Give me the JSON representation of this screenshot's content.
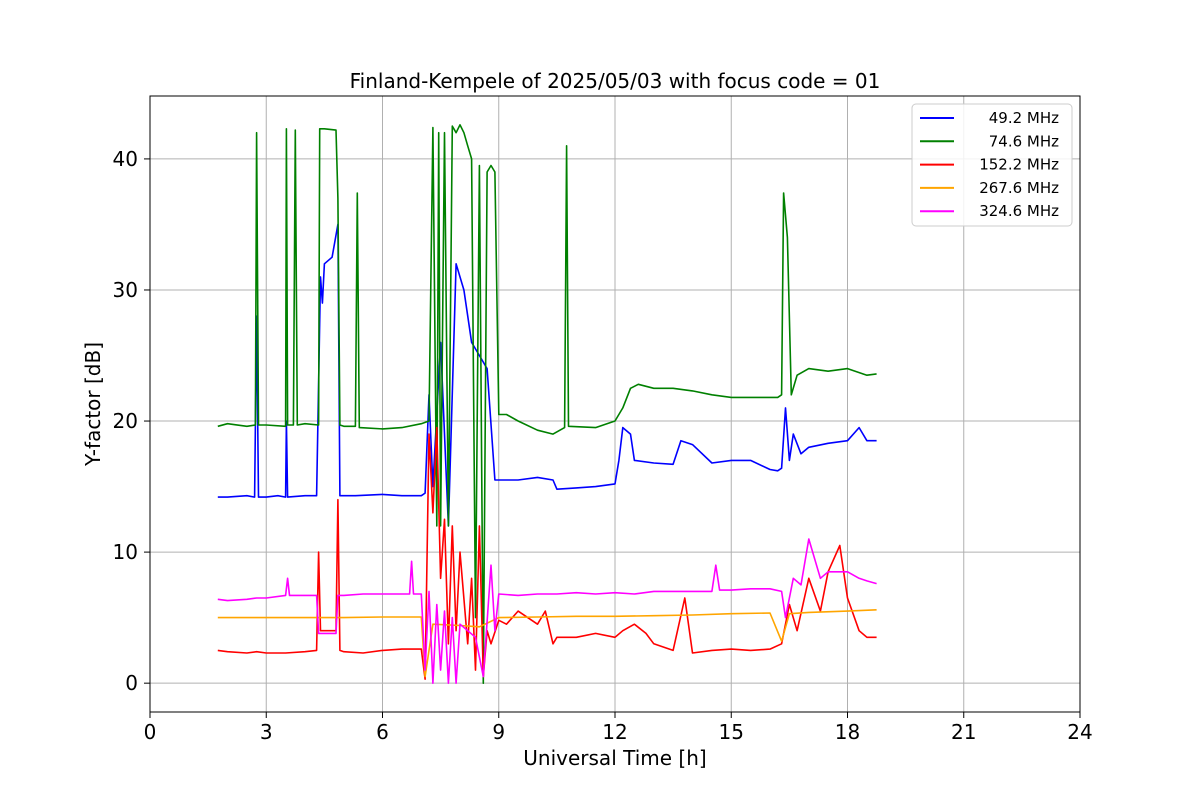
{
  "chart_data": {
    "type": "line",
    "title": "Finland-Kempele of 2025/05/03 with focus code = 01",
    "xlabel": "Universal Time [h]",
    "ylabel": "Y-factor [dB]",
    "xlim": [
      0,
      24
    ],
    "ylim": [
      -2.2,
      44.8
    ],
    "xticks": [
      0,
      3,
      6,
      9,
      12,
      15,
      18,
      21,
      24
    ],
    "yticks": [
      0,
      10,
      20,
      30,
      40
    ],
    "grid": true,
    "legend_position": "top-right",
    "series": [
      {
        "name": "49.2 MHz",
        "color": "#0000ff",
        "x": [
          1.75,
          2.0,
          2.5,
          2.7,
          2.75,
          2.8,
          3.0,
          3.3,
          3.5,
          3.52,
          3.55,
          4.0,
          4.3,
          4.4,
          4.45,
          4.5,
          4.7,
          4.85,
          4.9,
          4.95,
          5.3,
          6.0,
          6.5,
          7.0,
          7.1,
          7.2,
          7.3,
          7.5,
          7.7,
          7.9,
          8.1,
          8.3,
          8.5,
          8.7,
          8.9,
          9.0,
          9.2,
          9.5,
          10.0,
          10.4,
          10.5,
          11.0,
          11.5,
          12.0,
          12.1,
          12.2,
          12.4,
          12.5,
          13.0,
          13.5,
          13.7,
          14.0,
          14.5,
          15.0,
          15.5,
          16.0,
          16.2,
          16.3,
          16.4,
          16.5,
          16.6,
          16.8,
          17.0,
          17.5,
          18.0,
          18.3,
          18.5,
          18.75
        ],
        "y": [
          14.2,
          14.2,
          14.3,
          14.2,
          28.0,
          14.2,
          14.2,
          14.3,
          14.2,
          20.0,
          14.2,
          14.3,
          14.3,
          31.0,
          29.0,
          32.0,
          32.5,
          35.0,
          14.3,
          14.3,
          14.3,
          14.4,
          14.3,
          14.3,
          14.5,
          22.0,
          15.0,
          26.0,
          12.0,
          32.0,
          30.0,
          26.0,
          25.0,
          24.0,
          15.5,
          15.5,
          15.5,
          15.5,
          15.7,
          15.5,
          14.8,
          14.9,
          15.0,
          15.2,
          17.0,
          19.5,
          19.0,
          17.0,
          16.8,
          16.7,
          18.5,
          18.2,
          16.8,
          17.0,
          17.0,
          16.3,
          16.2,
          16.4,
          21.0,
          17.0,
          19.0,
          17.5,
          18.0,
          18.3,
          18.5,
          19.5,
          18.5,
          18.5
        ]
      },
      {
        "name": "74.6 MHz",
        "color": "#008000",
        "x": [
          1.75,
          2.0,
          2.5,
          2.72,
          2.75,
          2.8,
          3.0,
          3.5,
          3.52,
          3.55,
          3.7,
          3.75,
          3.8,
          4.0,
          4.35,
          4.38,
          4.5,
          4.8,
          4.85,
          4.9,
          5.0,
          5.3,
          5.35,
          5.4,
          6.0,
          6.5,
          7.0,
          7.2,
          7.3,
          7.4,
          7.45,
          7.5,
          7.6,
          7.7,
          7.8,
          7.9,
          8.0,
          8.1,
          8.2,
          8.3,
          8.4,
          8.5,
          8.6,
          8.7,
          8.8,
          8.9,
          9.0,
          9.2,
          9.5,
          10.0,
          10.4,
          10.7,
          10.75,
          10.8,
          11.5,
          12.0,
          12.2,
          12.4,
          12.6,
          13.0,
          13.5,
          14.0,
          14.5,
          15.0,
          15.5,
          16.0,
          16.2,
          16.3,
          16.35,
          16.45,
          16.55,
          16.7,
          17.0,
          17.5,
          18.0,
          18.5,
          18.75
        ],
        "y": [
          19.6,
          19.8,
          19.6,
          19.7,
          42.0,
          19.7,
          19.7,
          19.6,
          42.3,
          19.7,
          19.7,
          42.2,
          19.7,
          19.8,
          19.7,
          42.3,
          42.3,
          42.2,
          37.0,
          19.7,
          19.6,
          19.6,
          37.4,
          19.5,
          19.4,
          19.5,
          19.8,
          20.0,
          42.4,
          12.0,
          42.0,
          12.0,
          42.0,
          12.0,
          42.5,
          42.0,
          42.6,
          42.0,
          41.0,
          40.0,
          5.0,
          39.5,
          0.0,
          39.0,
          39.5,
          39.0,
          20.5,
          20.5,
          20.0,
          19.3,
          19.0,
          19.5,
          41.0,
          19.6,
          19.5,
          20.0,
          21.0,
          22.5,
          22.8,
          22.5,
          22.5,
          22.3,
          22.0,
          21.8,
          21.8,
          21.8,
          21.8,
          22.0,
          37.4,
          34.0,
          22.0,
          23.5,
          24.0,
          23.8,
          24.0,
          23.5,
          23.6
        ]
      },
      {
        "name": "152.2 MHz",
        "color": "#ff0000",
        "x": [
          1.75,
          2.0,
          2.5,
          2.75,
          3.0,
          3.5,
          4.0,
          4.3,
          4.35,
          4.4,
          4.5,
          4.8,
          4.85,
          4.9,
          5.0,
          5.5,
          6.0,
          6.5,
          7.0,
          7.1,
          7.2,
          7.3,
          7.4,
          7.5,
          7.6,
          7.7,
          7.8,
          7.9,
          8.0,
          8.2,
          8.3,
          8.4,
          8.5,
          8.6,
          8.7,
          8.8,
          9.0,
          9.2,
          9.5,
          10.0,
          10.2,
          10.4,
          10.5,
          11.0,
          11.5,
          12.0,
          12.2,
          12.5,
          12.8,
          13.0,
          13.5,
          13.8,
          14.0,
          14.5,
          15.0,
          15.5,
          16.0,
          16.3,
          16.5,
          16.7,
          17.0,
          17.3,
          17.5,
          17.8,
          18.0,
          18.3,
          18.5,
          18.75
        ],
        "y": [
          2.5,
          2.4,
          2.3,
          2.4,
          2.3,
          2.3,
          2.4,
          2.5,
          10.0,
          4.0,
          4.0,
          4.0,
          14.0,
          2.5,
          2.4,
          2.3,
          2.5,
          2.6,
          2.6,
          0.3,
          19.0,
          13.0,
          19.5,
          8.0,
          12.5,
          3.0,
          12.0,
          4.0,
          10.0,
          3.0,
          8.0,
          1.0,
          12.0,
          0.5,
          4.0,
          3.0,
          4.8,
          4.5,
          5.5,
          4.5,
          5.5,
          3.0,
          3.5,
          3.5,
          3.8,
          3.5,
          4.0,
          4.5,
          3.8,
          3.0,
          2.5,
          6.5,
          2.3,
          2.5,
          2.6,
          2.5,
          2.6,
          3.0,
          6.0,
          4.0,
          8.0,
          5.5,
          8.5,
          10.5,
          6.5,
          4.0,
          3.5,
          3.5
        ]
      },
      {
        "name": "267.6 MHz",
        "color": "#ffa500",
        "x": [
          1.75,
          2.0,
          3.0,
          4.0,
          5.0,
          6.0,
          7.0,
          7.1,
          7.3,
          8.0,
          8.5,
          9.0,
          10.0,
          11.0,
          12.0,
          13.0,
          14.0,
          15.0,
          16.0,
          16.3,
          16.5,
          17.0,
          18.0,
          18.75
        ],
        "y": [
          5.0,
          5.0,
          5.0,
          5.0,
          5.0,
          5.05,
          5.05,
          0.5,
          4.5,
          4.4,
          4.3,
          5.0,
          5.05,
          5.1,
          5.1,
          5.15,
          5.2,
          5.3,
          5.35,
          3.2,
          5.3,
          5.4,
          5.5,
          5.6
        ]
      },
      {
        "name": "324.6 MHz",
        "color": "#ff00ff",
        "x": [
          1.75,
          2.0,
          2.5,
          2.75,
          3.0,
          3.5,
          3.55,
          3.6,
          4.0,
          4.3,
          4.35,
          4.5,
          4.8,
          4.85,
          4.9,
          5.0,
          5.5,
          6.0,
          6.5,
          6.7,
          6.75,
          6.8,
          7.0,
          7.1,
          7.2,
          7.3,
          7.4,
          7.5,
          7.6,
          7.7,
          7.8,
          7.9,
          8.0,
          8.2,
          8.4,
          8.6,
          8.8,
          8.9,
          9.0,
          9.5,
          10.0,
          10.5,
          11.0,
          11.5,
          12.0,
          12.5,
          13.0,
          13.5,
          14.0,
          14.5,
          14.6,
          14.7,
          15.0,
          15.5,
          16.0,
          16.3,
          16.4,
          16.6,
          16.8,
          17.0,
          17.3,
          17.5,
          18.0,
          18.3,
          18.5,
          18.75
        ],
        "y": [
          6.4,
          6.3,
          6.4,
          6.5,
          6.5,
          6.7,
          8.0,
          6.7,
          6.7,
          6.7,
          3.8,
          3.8,
          3.8,
          6.7,
          6.7,
          6.7,
          6.8,
          6.8,
          6.8,
          6.8,
          9.3,
          6.8,
          6.8,
          1.0,
          7.0,
          0.0,
          6.0,
          1.0,
          5.5,
          0.0,
          5.0,
          0.0,
          4.5,
          4.0,
          3.5,
          0.5,
          9.0,
          4.0,
          6.8,
          6.7,
          6.8,
          6.8,
          6.9,
          6.8,
          6.9,
          6.8,
          7.0,
          7.0,
          7.0,
          7.0,
          9.0,
          7.1,
          7.1,
          7.2,
          7.2,
          7.0,
          5.0,
          8.0,
          7.5,
          11.0,
          8.0,
          8.5,
          8.5,
          8.0,
          7.8,
          7.6
        ]
      }
    ]
  }
}
